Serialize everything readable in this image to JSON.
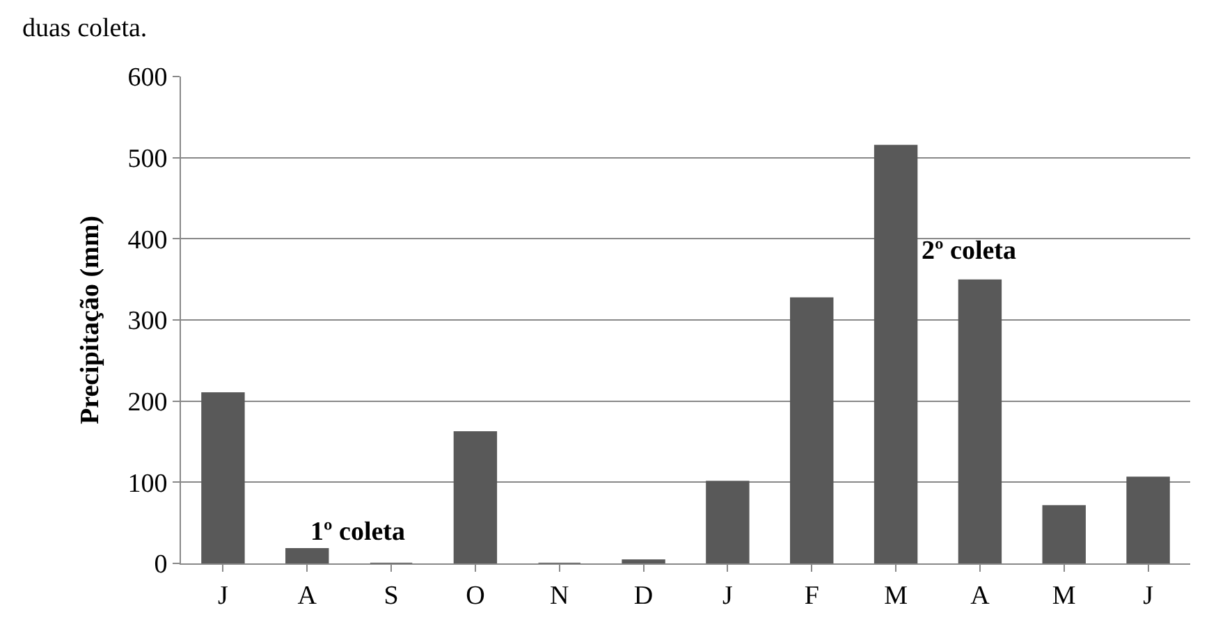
{
  "chart_data": {
    "type": "bar",
    "ylabel": "Precipitação (mm)",
    "categories": [
      "J",
      "A",
      "S",
      "O",
      "N",
      "D",
      "J",
      "F",
      "M",
      "A",
      "M",
      "J"
    ],
    "values": [
      210,
      18,
      0,
      162,
      0,
      4,
      101,
      327,
      515,
      349,
      71,
      106
    ],
    "color": "#595959",
    "ylim": [
      0,
      600
    ],
    "yticks": [
      0,
      100,
      200,
      300,
      400,
      500,
      600
    ],
    "grid": "y",
    "annotations": [
      "duas coleta.",
      "1º coleta",
      "2º coleta"
    ]
  }
}
